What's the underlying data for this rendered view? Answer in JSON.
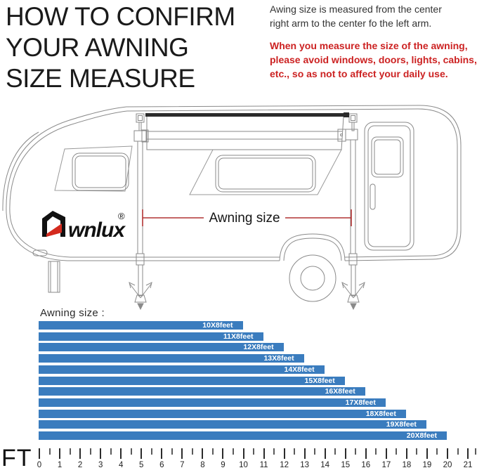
{
  "title": {
    "lines": [
      "HOW TO CONFIRM",
      "YOUR AWNING",
      "SIZE MEASURE"
    ]
  },
  "notes": {
    "measure_lines": [
      "Awing size is measured from the center",
      "right arm to the center fo the left arm."
    ],
    "warning_lines": [
      "When you measure the size of the awning,",
      "please avoid windows, doors, lights, cabins,",
      "etc., so as not to affect your daily use."
    ],
    "warning_color": "#cc2222"
  },
  "diagram": {
    "brand_wordmark": "wnlux",
    "brand_registered": "®",
    "measure_label": "Awning size",
    "line_color": "#8a8a8a",
    "accent_red": "#b23434",
    "logo_red": "#d42a1e"
  },
  "chart": {
    "heading": "Awning size :"
  },
  "chart_data": {
    "type": "bar",
    "orientation": "horizontal",
    "title": "Awning size",
    "categories": [
      "10X8feet",
      "11X8feet",
      "12X8feet",
      "13X8feet",
      "14X8feet",
      "15X8feet",
      "16X8feet",
      "17X8feet",
      "18X8feet",
      "19X8feet",
      "20X8feet"
    ],
    "values": [
      10,
      11,
      12,
      13,
      14,
      15,
      16,
      17,
      18,
      19,
      20
    ],
    "unit": "feet",
    "bar_color": "#3a7cbe",
    "bar_label_color": "#ffffff",
    "axis": {
      "label": "FT",
      "min": 0,
      "max": 21,
      "major_step": 1,
      "minor_step": 0.5
    }
  }
}
